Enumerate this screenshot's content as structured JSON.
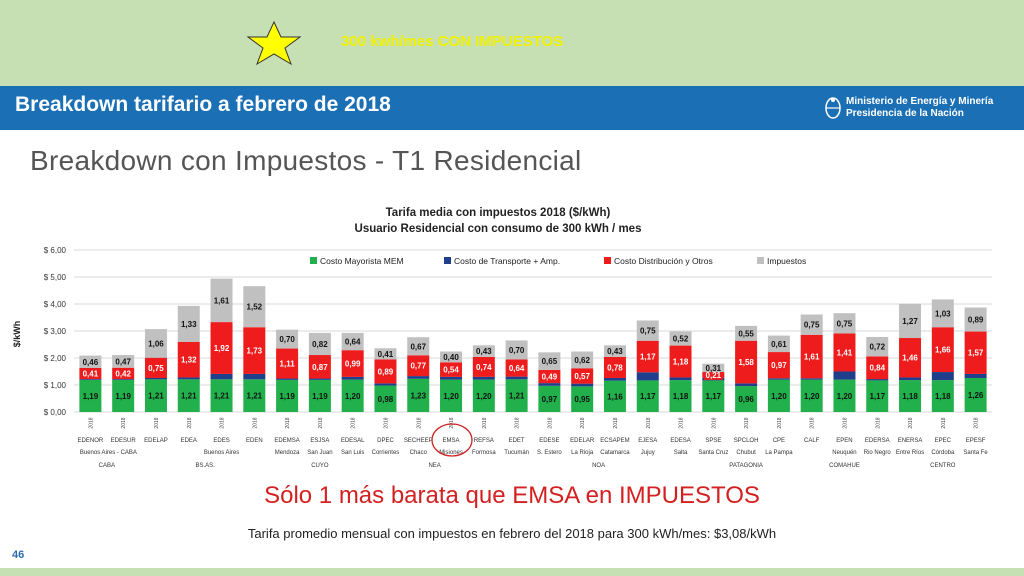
{
  "top_note": "300 kwh/mes CON IMPUESTOS",
  "banner_title": "Breakdown tarifario a febrero de 2018",
  "ministry": {
    "line1": "Ministerio de Energía y Minería",
    "line2": "Presidencia de la Nación"
  },
  "slide_title": "Breakdown con Impuestos - T1 Residencial",
  "annotation": "Sólo 1 más barata que EMSA en IMPUESTOS",
  "footer_note": "Tarifa promedio mensual con impuestos en febrero del 2018 para 300 kWh/mes: $3,08/kWh",
  "page_number": "46",
  "chart_data": {
    "type": "bar",
    "stacked": true,
    "title": "Tarifa media con impuestos 2018 ($/kWh)",
    "subtitle": "Usuario Residencial con consumo de 300 kWh / mes",
    "ylabel": "$/kWh",
    "ylim": [
      0,
      6
    ],
    "yticks": [
      "$ 0,00",
      "$ 1,00",
      "$ 2,00",
      "$ 3,00",
      "$ 4,00",
      "$ 5,00",
      "$ 6,00"
    ],
    "grid": true,
    "legend_position": "top",
    "year_label": "2018",
    "categories": [
      "EDENOR",
      "EDESUR",
      "EDELAP",
      "EDEA",
      "EDES",
      "EDEN",
      "EDEMSA",
      "ESJSA",
      "EDESAL",
      "DPEC",
      "SECHEEP",
      "EMSA",
      "REFSA",
      "EDET",
      "EDESE",
      "EDELAR",
      "ECSAPEM",
      "EJESA",
      "EDESA",
      "SPSE",
      "SPCLOH",
      "CPE",
      "CALF",
      "EPEN",
      "EDERSA",
      "ENERSA",
      "EPEC",
      "EPESF"
    ],
    "category_provinces": [
      "Buenos Aires - CABA",
      "",
      "",
      "",
      "Buenos Aires",
      "",
      "Mendoza",
      "San Juan",
      "San Luis",
      "Corrientes",
      "Chaco",
      "Misiones",
      "Formosa",
      "Tucumán",
      "S. Estero",
      "La Rioja",
      "Catamarca",
      "Jujuy",
      "Salta",
      "Santa Cruz",
      "Chubut",
      "La Pampa",
      "",
      "Neuquén",
      "Rio Negro",
      "Entre Ríos",
      "Córdoba",
      "Santa Fe"
    ],
    "groups": [
      {
        "label": "CABA",
        "start": 0,
        "end": 1
      },
      {
        "label": "BS.AS.",
        "start": 2,
        "end": 5
      },
      {
        "label": "CUYO",
        "start": 6,
        "end": 8
      },
      {
        "label": "NEA",
        "start": 9,
        "end": 12
      },
      {
        "label": "NOA",
        "start": 13,
        "end": 18
      },
      {
        "label": "PATAGONIA",
        "start": 19,
        "end": 21
      },
      {
        "label": "COMAHUE",
        "start": 22,
        "end": 24
      },
      {
        "label": "CENTRO",
        "start": 25,
        "end": 27
      }
    ],
    "highlight_category": "EMSA",
    "series": [
      {
        "name": "Costo Mayorista MEM",
        "color": "#21b04b",
        "values": [
          1.19,
          1.19,
          1.21,
          1.21,
          1.21,
          1.21,
          1.19,
          1.19,
          1.2,
          0.98,
          1.23,
          1.2,
          1.2,
          1.21,
          0.97,
          0.95,
          1.16,
          1.17,
          1.18,
          1.17,
          0.96,
          1.2,
          1.2,
          1.2,
          1.17,
          1.18,
          1.18,
          1.26
        ],
        "labels": [
          "1,19",
          "1,19",
          "1,21",
          "1,21",
          "1,21",
          "1,21",
          "1,19",
          "1,19",
          "1,20",
          "0,98",
          "1,23",
          "1,20",
          "1,20",
          "1,21",
          "0,97",
          "0,95",
          "1,16",
          "1,17",
          "1,18",
          "1,17",
          "0,96",
          "1,20",
          "1,20",
          "1,20",
          "1,17",
          "1,18",
          "1,18",
          "1,26"
        ]
      },
      {
        "name": "Costo de Transporte + Amp.",
        "color": "#1f3f8c",
        "values": [
          0.03,
          0.03,
          0.05,
          0.07,
          0.2,
          0.2,
          0.05,
          0.05,
          0.1,
          0.08,
          0.1,
          0.1,
          0.1,
          0.1,
          0.1,
          0.1,
          0.1,
          0.3,
          0.1,
          0.1,
          0.1,
          0.05,
          0.05,
          0.3,
          0.05,
          0.1,
          0.3,
          0.15
        ],
        "labels": []
      },
      {
        "name": "Costo Distribución y Otros",
        "color": "#ee1c1c",
        "values": [
          0.41,
          0.42,
          0.75,
          1.32,
          1.92,
          1.73,
          1.11,
          0.87,
          0.99,
          0.89,
          0.77,
          0.54,
          0.74,
          0.64,
          0.49,
          0.57,
          0.78,
          1.17,
          1.18,
          0.21,
          1.58,
          0.97,
          1.61,
          1.41,
          0.84,
          1.46,
          1.66,
          1.57
        ],
        "labels": [
          "0,41",
          "0,42",
          "0,75",
          "1,32",
          "1,92",
          "1,73",
          "1,11",
          "0,87",
          "0,99",
          "0,89",
          "0,77",
          "0,54",
          "0,74",
          "0,64",
          "0,49",
          "0,57",
          "0,78",
          "1,17",
          "1,18",
          "0,21",
          "1,58",
          "0,97",
          "1,61",
          "1,41",
          "0,84",
          "1,46",
          "1,66",
          "1,57"
        ]
      },
      {
        "name": "Impuestos",
        "color": "#c0c0c0",
        "values": [
          0.46,
          0.47,
          1.06,
          1.33,
          1.61,
          1.52,
          0.7,
          0.82,
          0.64,
          0.41,
          0.67,
          0.4,
          0.43,
          0.7,
          0.65,
          0.62,
          0.43,
          0.75,
          0.52,
          0.31,
          0.55,
          0.61,
          0.75,
          0.75,
          0.72,
          1.27,
          1.03,
          0.89
        ],
        "labels": [
          "0,46",
          "0,47",
          "1,06",
          "1,33",
          "1,61",
          "1,52",
          "0,70",
          "0,82",
          "0,64",
          "0,41",
          "0,67",
          "0,40",
          "0,43",
          "0,70",
          "0,65",
          "0,62",
          "0,43",
          "0,75",
          "0,52",
          "0,31",
          "0,55",
          "0,61",
          "0,75",
          "0,75",
          "0,72",
          "1,27",
          "1,03",
          "0,89"
        ]
      }
    ]
  }
}
